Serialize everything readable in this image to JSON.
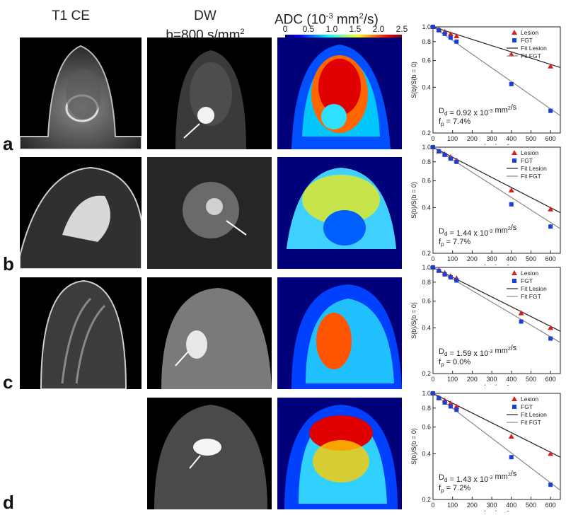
{
  "headers": {
    "t1": "T1 CE",
    "dw_line1": "DW",
    "dw_line2": "b=800 s/mm",
    "dw_sup": "2",
    "adc_pre": "ADC (10",
    "adc_sup1": "-3",
    "adc_mid": " mm",
    "adc_sup2": "2",
    "adc_post": "/s)"
  },
  "colorbar": {
    "ticks": [
      "0",
      "0.5",
      "1.0",
      "1.5",
      "2.0",
      "2.5"
    ],
    "colors": [
      "#00008f",
      "#0000ff",
      "#0080ff",
      "#00ffff",
      "#80ff80",
      "#ffff00",
      "#ff8000",
      "#ff0000",
      "#800000"
    ]
  },
  "rows": [
    {
      "label": "a",
      "dd_text": "D",
      "dd_sub": "d",
      "dd_val": " = 0.92 x 10",
      "dd_exp": "-3",
      "dd_unit": " mm",
      "dd_unit_exp": "2",
      "dd_tail": "/s",
      "fp_text": "f",
      "fp_sub": "p",
      "fp_val": " = 7.4%"
    },
    {
      "label": "b",
      "dd_text": "D",
      "dd_sub": "d",
      "dd_val": " = 1.44 x 10",
      "dd_exp": "-3",
      "dd_unit": " mm",
      "dd_unit_exp": "2",
      "dd_tail": "/s",
      "fp_text": "f",
      "fp_sub": "p",
      "fp_val": " = 7.7%"
    },
    {
      "label": "c",
      "dd_text": "D",
      "dd_sub": "d",
      "dd_val": " = 1.59 x 10",
      "dd_exp": "-3",
      "dd_unit": " mm",
      "dd_unit_exp": "2",
      "dd_tail": "/s",
      "fp_text": "f",
      "fp_sub": "p",
      "fp_val": " = 0.0%"
    },
    {
      "label": "d",
      "dd_text": "D",
      "dd_sub": "d",
      "dd_val": " = 1.43 x 10",
      "dd_exp": "-3",
      "dd_unit": " mm",
      "dd_unit_exp": "2",
      "dd_tail": "/s",
      "fp_text": "f",
      "fp_sub": "p",
      "fp_val": " = 7.2%"
    }
  ],
  "chart_data": [
    {
      "type": "scatter",
      "ylabel": "S(b)/S(b = 0)",
      "xlabel": "b, s/mm²",
      "x_ticks": [
        "0",
        "100",
        "200",
        "300",
        "400",
        "500",
        "600"
      ],
      "y_ticks": [
        "0.2",
        "0.4",
        "0.6",
        "0.8",
        "1.0"
      ],
      "xlim": [
        0,
        650
      ],
      "ylim": [
        0.2,
        1.0
      ],
      "yscale": "log",
      "legend": [
        "Lesion",
        "FGT",
        "Fit Lesion",
        "Fit FGT"
      ],
      "legend_placement": "top-right",
      "series": [
        {
          "name": "Lesion",
          "x": [
            0,
            30,
            60,
            90,
            120,
            400,
            600
          ],
          "y": [
            1.0,
            0.96,
            0.93,
            0.9,
            0.87,
            0.66,
            0.55
          ],
          "fit": [
            1.0,
            0.54
          ]
        },
        {
          "name": "FGT",
          "x": [
            0,
            30,
            60,
            90,
            120,
            400,
            600
          ],
          "y": [
            1.0,
            0.95,
            0.9,
            0.85,
            0.8,
            0.42,
            0.28
          ],
          "fit": [
            1.0,
            0.26
          ]
        }
      ]
    },
    {
      "type": "scatter",
      "ylabel": "S(b)/S(b = 0)",
      "xlabel": "b, s/mm²",
      "x_ticks": [
        "0",
        "100",
        "200",
        "300",
        "400",
        "500",
        "600"
      ],
      "y_ticks": [
        "0.2",
        "0.4",
        "0.6",
        "0.8",
        "1.0"
      ],
      "xlim": [
        0,
        650
      ],
      "ylim": [
        0.2,
        1.0
      ],
      "yscale": "log",
      "legend": [
        "Lesion",
        "FGT",
        "Fit Lesion",
        "Fit FGT"
      ],
      "legend_placement": "top-right",
      "series": [
        {
          "name": "Lesion",
          "x": [
            0,
            30,
            60,
            90,
            120,
            400,
            600
          ],
          "y": [
            1.0,
            0.94,
            0.9,
            0.86,
            0.82,
            0.52,
            0.39
          ],
          "fit": [
            1.0,
            0.37
          ]
        },
        {
          "name": "FGT",
          "x": [
            0,
            30,
            60,
            90,
            120,
            400,
            600
          ],
          "y": [
            1.0,
            0.94,
            0.89,
            0.84,
            0.8,
            0.42,
            0.3
          ],
          "fit": [
            1.0,
            0.29
          ]
        }
      ]
    },
    {
      "type": "scatter",
      "ylabel": "S(b)/S(b = 0)",
      "xlabel": "b, s/mm²",
      "x_ticks": [
        "0",
        "100",
        "200",
        "300",
        "400",
        "500",
        "600"
      ],
      "y_ticks": [
        "0.2",
        "0.4",
        "0.6",
        "0.8",
        "1.0"
      ],
      "xlim": [
        0,
        650
      ],
      "ylim": [
        0.2,
        1.0
      ],
      "yscale": "log",
      "legend": [
        "Lesion",
        "FGT",
        "Fit Lesion",
        "Fit FGT"
      ],
      "legend_placement": "top-right",
      "series": [
        {
          "name": "Lesion",
          "x": [
            0,
            30,
            60,
            90,
            120,
            450,
            600
          ],
          "y": [
            1.0,
            0.96,
            0.92,
            0.88,
            0.85,
            0.5,
            0.4
          ],
          "fit": [
            1.0,
            0.38
          ]
        },
        {
          "name": "FGT",
          "x": [
            0,
            30,
            60,
            90,
            120,
            450,
            600
          ],
          "y": [
            1.0,
            0.95,
            0.9,
            0.86,
            0.82,
            0.44,
            0.34
          ],
          "fit": [
            1.0,
            0.32
          ]
        }
      ]
    },
    {
      "type": "scatter",
      "ylabel": "S(b)/S(b = 0)",
      "xlabel": "b, s/mm²",
      "x_ticks": [
        "0",
        "100",
        "200",
        "300",
        "400",
        "500",
        "600"
      ],
      "y_ticks": [
        "0.2",
        "0.4",
        "0.6",
        "0.8",
        "1.0"
      ],
      "xlim": [
        0,
        650
      ],
      "ylim": [
        0.2,
        1.0
      ],
      "yscale": "log",
      "legend": [
        "Lesion",
        "FGT",
        "Fit Lesion",
        "Fit FGT"
      ],
      "legend_placement": "top-right",
      "series": [
        {
          "name": "Lesion",
          "x": [
            0,
            30,
            60,
            90,
            120,
            400,
            600
          ],
          "y": [
            1.0,
            0.94,
            0.9,
            0.86,
            0.82,
            0.52,
            0.4
          ],
          "fit": [
            1.0,
            0.38
          ]
        },
        {
          "name": "FGT",
          "x": [
            0,
            30,
            60,
            90,
            120,
            400,
            600
          ],
          "y": [
            1.0,
            0.93,
            0.87,
            0.82,
            0.78,
            0.38,
            0.25
          ],
          "fit": [
            1.0,
            0.23
          ]
        }
      ]
    }
  ]
}
